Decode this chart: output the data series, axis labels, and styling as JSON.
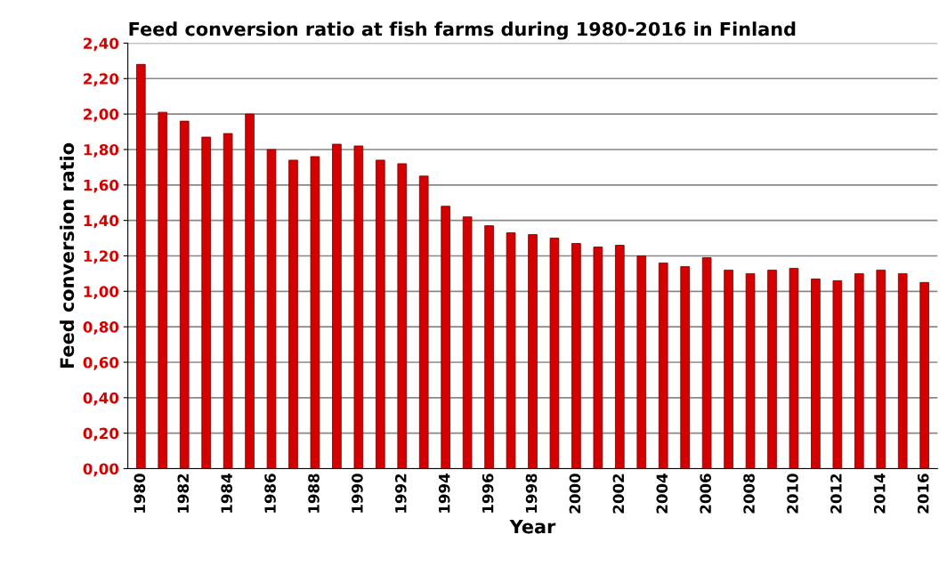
{
  "chart_data": {
    "type": "bar",
    "title": "Feed conversion ratio at fish farms during 1980-2016 in Finland",
    "xlabel": "Year",
    "ylabel": "Feed conversion ratio",
    "categories": [
      "1980",
      null,
      "1982",
      null,
      "1984",
      null,
      "1986",
      null,
      "1988",
      null,
      "1990",
      null,
      "1992",
      null,
      "1994",
      null,
      "1996",
      null,
      "1998",
      null,
      "2000",
      null,
      "2002",
      null,
      "2004",
      null,
      "2006",
      null,
      "2008",
      null,
      "2010",
      null,
      "2012",
      null,
      "2014",
      null,
      "2016"
    ],
    "values": [
      2.28,
      2.01,
      1.96,
      1.87,
      1.89,
      2.0,
      1.8,
      1.74,
      1.76,
      1.83,
      1.82,
      1.74,
      1.72,
      1.65,
      1.48,
      1.42,
      1.37,
      1.33,
      1.32,
      1.3,
      1.27,
      1.25,
      1.26,
      1.2,
      1.16,
      1.14,
      1.19,
      1.12,
      1.1,
      1.12,
      1.13,
      1.07,
      1.06,
      1.1,
      1.12,
      1.1,
      1.05
    ],
    "color": "#d40000",
    "ylim": [
      0,
      2.4
    ],
    "yticks": [
      {
        "value": 0,
        "label": "0,00"
      },
      {
        "value": 0.2,
        "label": "0,20"
      },
      {
        "value": 0.4,
        "label": "0,40"
      },
      {
        "value": 0.6,
        "label": "0,60"
      },
      {
        "value": 0.8,
        "label": "0,80"
      },
      {
        "value": 1.0,
        "label": "1,00"
      },
      {
        "value": 1.2,
        "label": "1,20"
      },
      {
        "value": 1.4,
        "label": "1,40"
      },
      {
        "value": 1.6,
        "label": "1,60"
      },
      {
        "value": 1.8,
        "label": "1,80"
      },
      {
        "value": 2.0,
        "label": "2,00"
      },
      {
        "value": 2.2,
        "label": "2,20"
      },
      {
        "value": 2.4,
        "label": "2,40"
      }
    ],
    "grid": "y"
  }
}
